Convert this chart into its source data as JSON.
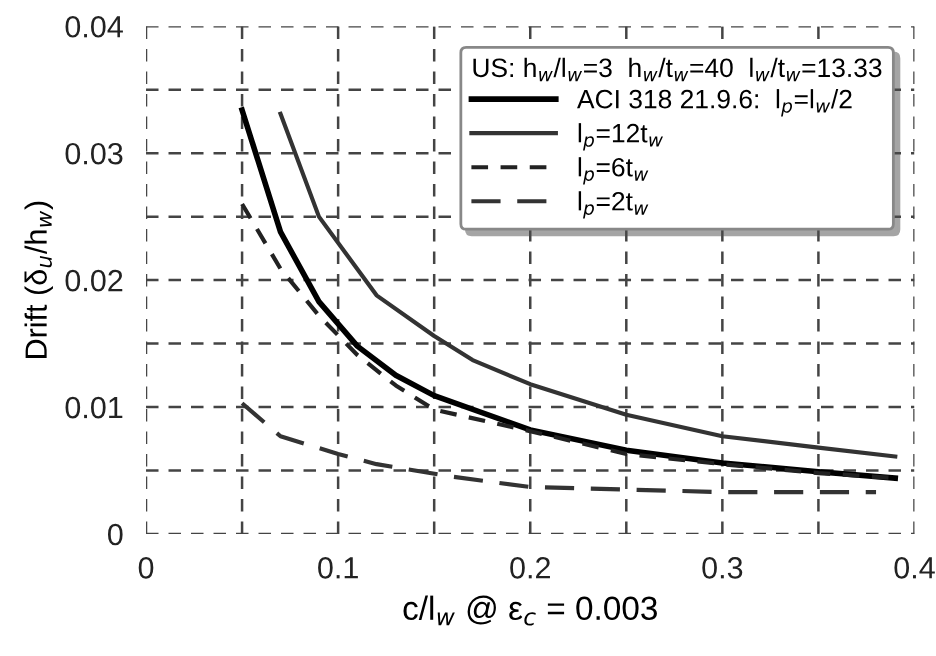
{
  "chart_data": {
    "type": "line",
    "xlabel": "c/l$_{w}$ @ ε$_{c}$ = 0.003",
    "ylabel": "Drift (δ$_{u}$/h$_{w}$)",
    "legend_title": "US: h$_{w}$/l$_{w}$=3  h$_{w}$/t$_{w}$=40  l$_{w}$/t$_{w}$=13.33",
    "series": [
      {
        "name": "ACI 318 21.9.6:  l$_{p}$=l$_{w}$/2",
        "color": "#000000",
        "line_style": "solid",
        "x": [
          0.05,
          0.07,
          0.09,
          0.11,
          0.13,
          0.15,
          0.2,
          0.25,
          0.3,
          0.35,
          0.39
        ],
        "values": [
          0.0334,
          0.0238,
          0.0183,
          0.0148,
          0.0125,
          0.0109,
          0.0082,
          0.0066,
          0.0056,
          0.0049,
          0.0044
        ]
      },
      {
        "name": "l$_{p}$=12t$_{w}$",
        "color": "#333333",
        "line_style": "solid",
        "x": [
          0.07,
          0.09,
          0.12,
          0.15,
          0.17,
          0.2,
          0.25,
          0.3,
          0.35,
          0.39
        ],
        "values": [
          0.0331,
          0.025,
          0.0188,
          0.0156,
          0.0137,
          0.0118,
          0.0094,
          0.0077,
          0.0068,
          0.0061
        ]
      },
      {
        "name": "l$_{p}$=6t$_{w}$",
        "color": "#222222",
        "line_style": "dashed",
        "x": [
          0.05,
          0.07,
          0.09,
          0.11,
          0.13,
          0.15,
          0.2,
          0.25,
          0.3,
          0.35,
          0.39
        ],
        "values": [
          0.026,
          0.0209,
          0.0172,
          0.0141,
          0.0117,
          0.0098,
          0.0081,
          0.0063,
          0.0055,
          0.0048,
          0.0044
        ]
      },
      {
        "name": "l$_{p}$=2t$_{w}$",
        "color": "#333333",
        "line_style": "dashed",
        "x": [
          0.05,
          0.07,
          0.1,
          0.12,
          0.16,
          0.2,
          0.25,
          0.3,
          0.38
        ],
        "values": [
          0.0103,
          0.0077,
          0.0063,
          0.0055,
          0.0045,
          0.0037,
          0.0035,
          0.0033,
          0.0033
        ]
      }
    ],
    "xlim": [
      0,
      0.4
    ],
    "ylim": [
      0,
      0.04
    ],
    "xticks": [
      0,
      {
        "value": 0.05,
        "label": null
      },
      0.1,
      {
        "value": 0.15,
        "label": null
      },
      0.2,
      {
        "value": 0.25,
        "label": null
      },
      0.3,
      {
        "value": 0.35,
        "label": null
      },
      0.4
    ],
    "yticks": [
      0,
      {
        "value": 0.005,
        "label": null
      },
      0.01,
      {
        "value": 0.015,
        "label": null
      },
      0.02,
      {
        "value": 0.025,
        "label": null
      },
      0.03,
      {
        "value": 0.035,
        "label": null
      },
      0.04
    ],
    "grid": true,
    "legend": "top right",
    "marker": "none"
  }
}
